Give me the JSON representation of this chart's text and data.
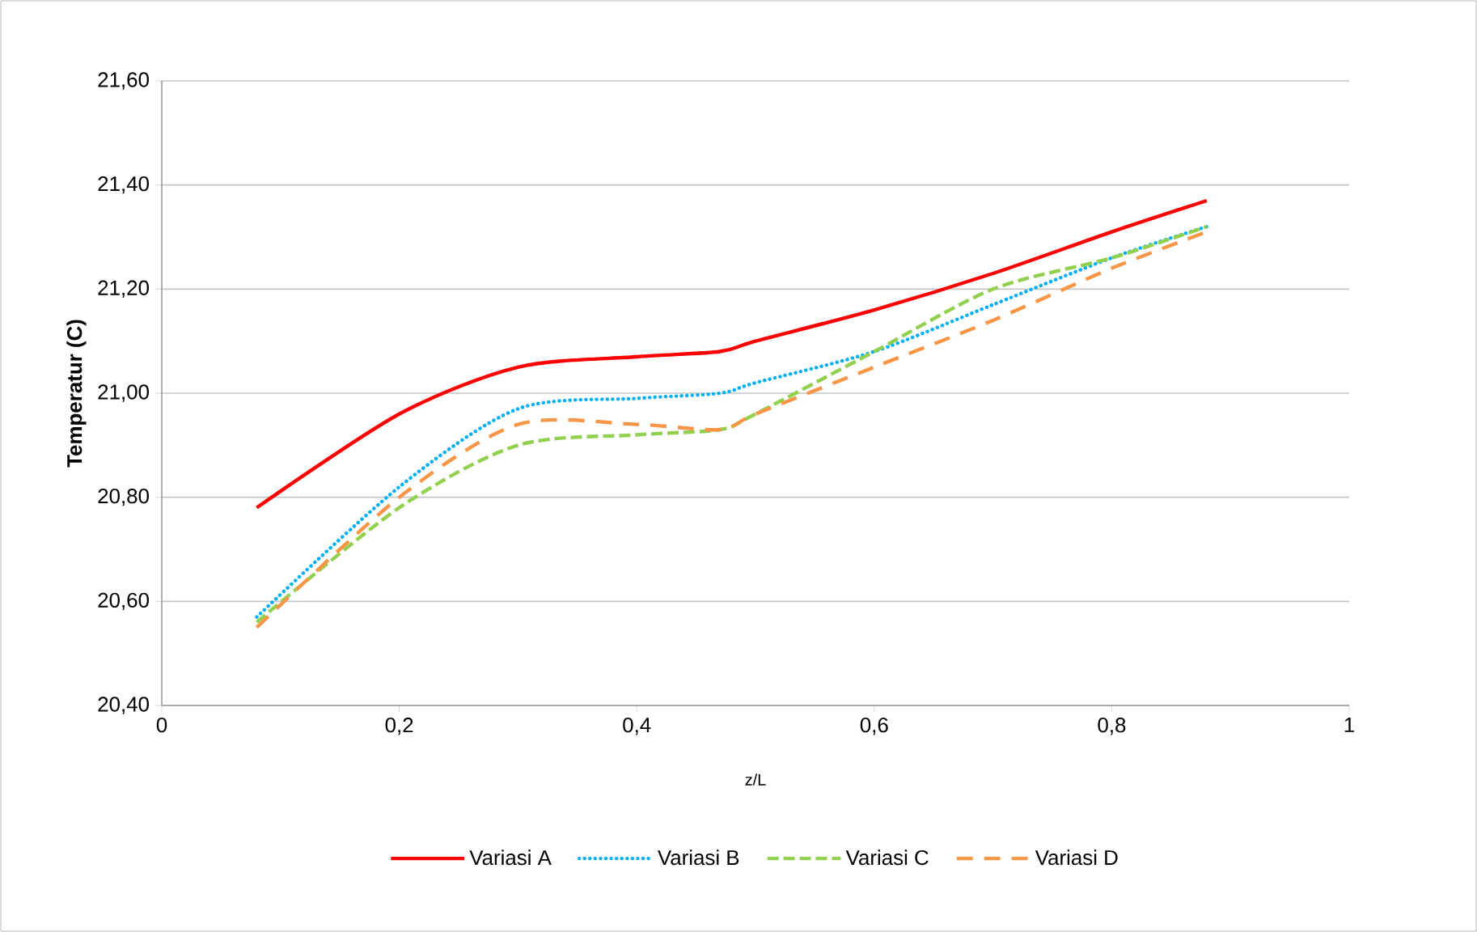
{
  "chart_data": {
    "type": "line",
    "xlabel": "z/L",
    "ylabel": "Temperatur (C)",
    "x": [
      0.08,
      0.2,
      0.3,
      0.4,
      0.47,
      0.5,
      0.6,
      0.7,
      0.8,
      0.88
    ],
    "series": [
      {
        "name": "Variasi A",
        "color": "#ff0000",
        "line_style": "solid",
        "values": [
          20.78,
          20.96,
          21.05,
          21.07,
          21.08,
          21.1,
          21.16,
          21.23,
          21.31,
          21.37
        ]
      },
      {
        "name": "Variasi B",
        "color": "#00b0f0",
        "line_style": "dotted",
        "values": [
          20.57,
          20.82,
          20.97,
          20.99,
          21.0,
          21.02,
          21.08,
          21.17,
          21.26,
          21.32
        ]
      },
      {
        "name": "Variasi C",
        "color": "#92d050",
        "line_style": "dashed",
        "values": [
          20.56,
          20.78,
          20.9,
          20.92,
          20.93,
          20.96,
          21.08,
          21.2,
          21.26,
          21.32
        ]
      },
      {
        "name": "Variasi D",
        "color": "#f79646",
        "line_style": "longdashed",
        "values": [
          20.55,
          20.8,
          20.94,
          20.94,
          20.93,
          20.96,
          21.05,
          21.14,
          21.24,
          21.31
        ]
      }
    ],
    "xlim": [
      0,
      1
    ],
    "ylim": [
      20.4,
      21.6
    ],
    "xticks": [
      0,
      {
        "value": 0.2,
        "label": "0,2"
      },
      {
        "value": 0.4,
        "label": "0,4"
      },
      {
        "value": 0.6,
        "label": "0,6"
      },
      {
        "value": 0.8,
        "label": "0,8"
      },
      1
    ],
    "yticks": [
      {
        "value": 20.4,
        "label": "20,40"
      },
      {
        "value": 20.6,
        "label": "20,60"
      },
      {
        "value": 20.8,
        "label": "20,80"
      },
      {
        "value": 21.0,
        "label": "21,00"
      },
      {
        "value": 21.2,
        "label": "21,20"
      },
      {
        "value": 21.4,
        "label": "21,40"
      },
      {
        "value": 21.6,
        "label": "21,60"
      }
    ],
    "grid": "y",
    "legend": "bottom",
    "marker": "none"
  }
}
